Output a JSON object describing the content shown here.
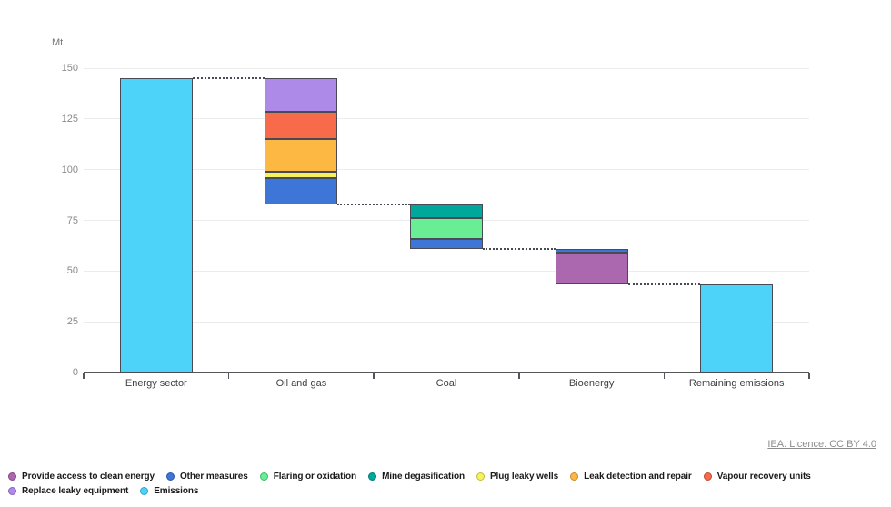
{
  "chart_data": {
    "type": "waterfall",
    "unit": "Mt",
    "ylim": [
      0,
      150
    ],
    "y_ticks": [
      0,
      25,
      50,
      75,
      100,
      125,
      150
    ],
    "grid": true,
    "legend_position": "bottom-left",
    "categories": [
      "Energy sector",
      "Oil and gas",
      "Coal",
      "Bioenergy",
      "Remaining emissions"
    ],
    "bars": [
      {
        "category": "Energy sector",
        "base": 0,
        "segments": [
          {
            "label": "Emissions",
            "key": "emissions",
            "value": 145
          }
        ]
      },
      {
        "category": "Oil and gas",
        "base": 83,
        "segments": [
          {
            "label": "Other measures",
            "key": "other_measures",
            "value": 13
          },
          {
            "label": "Plug leaky wells",
            "key": "plug_leaky_wells",
            "value": 3
          },
          {
            "label": "Leak detection and repair",
            "key": "leak_detection_and_repair",
            "value": 16
          },
          {
            "label": "Vapour recovery units",
            "key": "vapour_recovery_units",
            "value": 13.5
          },
          {
            "label": "Replace leaky equipment",
            "key": "replace_leaky_equipment",
            "value": 16.5
          }
        ]
      },
      {
        "category": "Coal",
        "base": 61,
        "segments": [
          {
            "label": "Other measures",
            "key": "other_measures",
            "value": 5
          },
          {
            "label": "Flaring or oxidation",
            "key": "flaring_or_oxidation",
            "value": 10
          },
          {
            "label": "Mine degasification",
            "key": "mine_degasification",
            "value": 7
          }
        ]
      },
      {
        "category": "Bioenergy",
        "base": 43.5,
        "segments": [
          {
            "label": "Provide access to clean energy",
            "key": "provide_access_to_clean_energy",
            "value": 15.8
          },
          {
            "label": "Other measures",
            "key": "other_measures",
            "value": 1.7
          }
        ]
      },
      {
        "category": "Remaining emissions",
        "base": 0,
        "segments": [
          {
            "label": "Emissions",
            "key": "emissions",
            "value": 43.5
          }
        ]
      }
    ],
    "connectors": [
      {
        "from": "Energy sector",
        "to": "Oil and gas",
        "level": 145
      },
      {
        "from": "Oil and gas",
        "to": "Coal",
        "level": 83
      },
      {
        "from": "Coal",
        "to": "Bioenergy",
        "level": 61
      },
      {
        "from": "Bioenergy",
        "to": "Remaining emissions",
        "level": 43.5
      }
    ]
  },
  "legend": {
    "rows": [
      [
        {
          "key": "provide_access_to_clean_energy",
          "label": "Provide access to clean energy"
        },
        {
          "key": "other_measures",
          "label": "Other measures"
        },
        {
          "key": "flaring_or_oxidation",
          "label": "Flaring or oxidation"
        },
        {
          "key": "mine_degasification",
          "label": "Mine degasification"
        },
        {
          "key": "plug_leaky_wells",
          "label": "Plug leaky wells"
        },
        {
          "key": "leak_detection_and_repair",
          "label": "Leak detection and repair"
        },
        {
          "key": "vapour_recovery_units",
          "label": "Vapour recovery units"
        }
      ],
      [
        {
          "key": "replace_leaky_equipment",
          "label": "Replace leaky equipment"
        },
        {
          "key": "emissions",
          "label": "Emissions"
        }
      ]
    ]
  },
  "footer": {
    "license_label": "IEA. Licence: CC BY 4.0"
  },
  "colors": {
    "series": {
      "emissions": {
        "fill": "#4DD2FA",
        "ring": "#2BA6CF"
      },
      "other_measures": {
        "fill": "#3E76D8",
        "ring": "#2B56A8"
      },
      "flaring_or_oxidation": {
        "fill": "#69EE95",
        "ring": "#3FB96C"
      },
      "mine_degasification": {
        "fill": "#00A79B",
        "ring": "#007D74"
      },
      "plug_leaky_wells": {
        "fill": "#F6F15F",
        "ring": "#C2BC38"
      },
      "leak_detection_and_repair": {
        "fill": "#FCB843",
        "ring": "#C98A26"
      },
      "vapour_recovery_units": {
        "fill": "#F76A4A",
        "ring": "#C04A31"
      },
      "replace_leaky_equipment": {
        "fill": "#AD8AE8",
        "ring": "#8363BC"
      },
      "provide_access_to_clean_energy": {
        "fill": "#AC68AE",
        "ring": "#7F4781"
      }
    },
    "segment_border": "#4A4A55",
    "grid": "#ECECEC",
    "axis": "#55555A",
    "connector": "#4A4A55",
    "tick_label": "#8A8A8A",
    "unit_label": "#757575",
    "category_label": "#3F3F3F",
    "legend_text": "#1A1A1A",
    "license": "#8C8C8C"
  }
}
